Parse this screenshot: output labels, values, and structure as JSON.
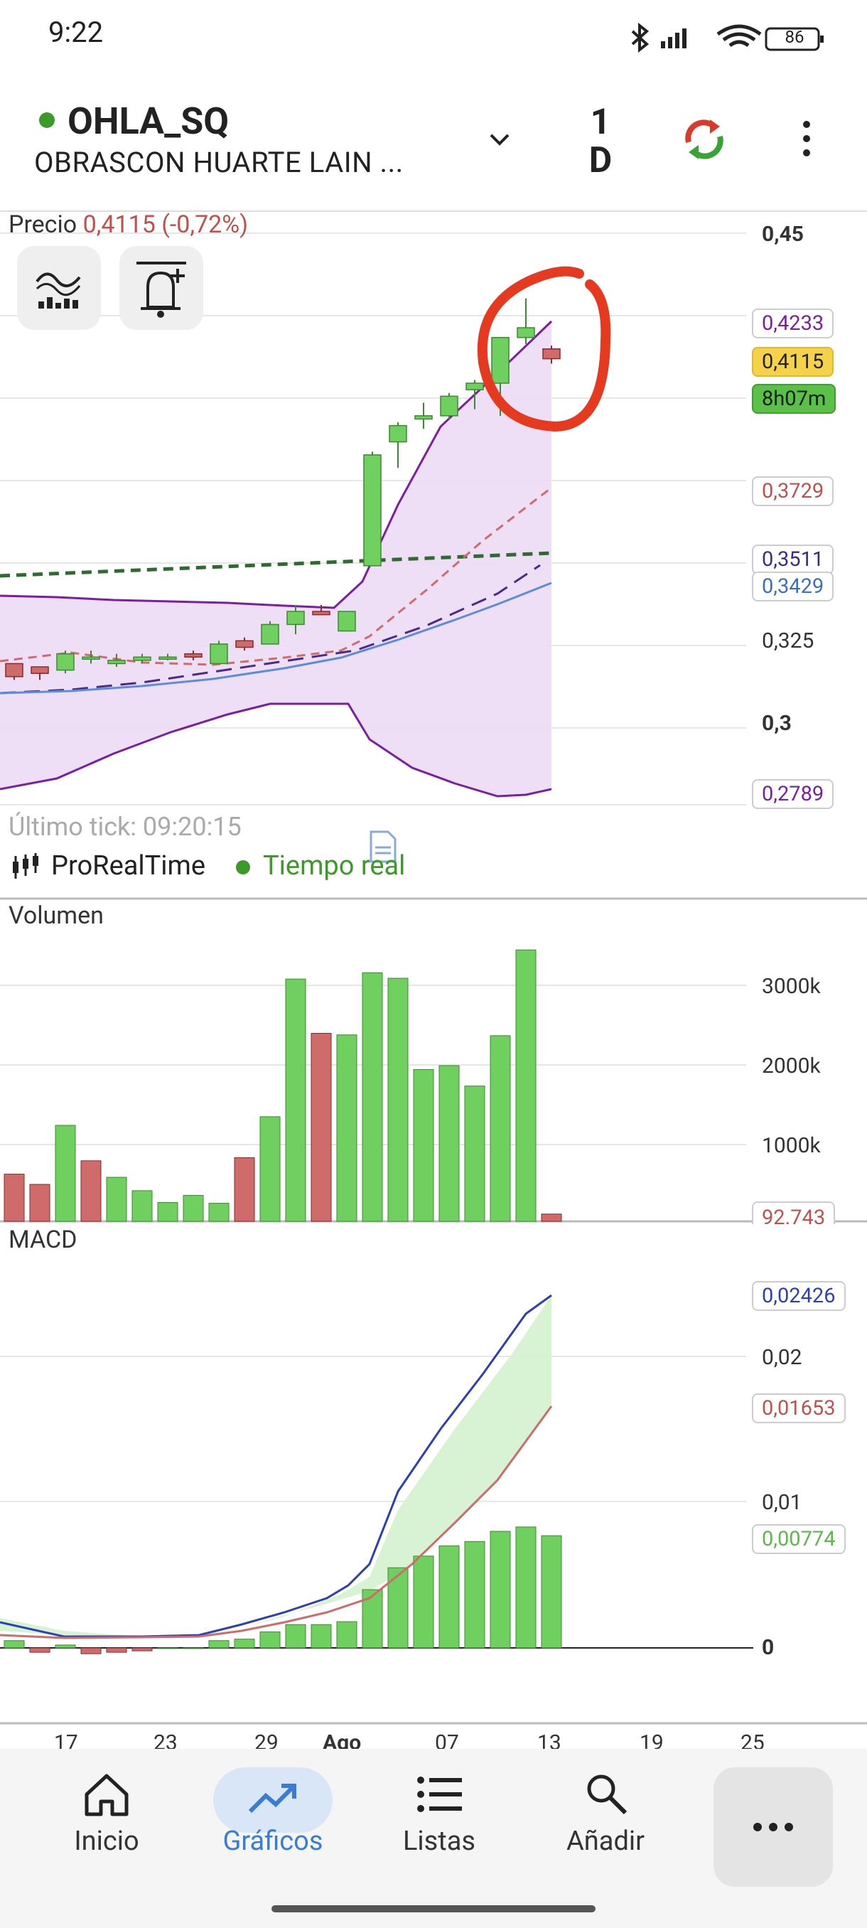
{
  "status": {
    "time": "9:22",
    "battery": "86"
  },
  "header": {
    "ticker": "OHLA_SQ",
    "company": "OBRASCON HUARTE LAIN ...",
    "period_top": "1",
    "period_bottom": "D"
  },
  "price_panel": {
    "label": "Precio",
    "value": "0,4115 (-0,72%)",
    "tags": {
      "upper_band": "0,4233",
      "last": "0,4115",
      "countdown": "8h07m",
      "ma_red": "0,3729",
      "dashed": "0,3511",
      "ma_blue": "0,3429",
      "lower_band": "0,2789"
    },
    "axis": [
      "0,45",
      "0,325",
      "0,3"
    ],
    "last_tick": "Último tick: 09:20:15",
    "provider": "ProRealTime",
    "realtime": "Tiempo real"
  },
  "volume_panel": {
    "label": "Volumen",
    "axis": [
      "3000k",
      "2000k",
      "1000k"
    ],
    "last_tag": "92.743"
  },
  "macd_panel": {
    "label": "MACD",
    "axis": [
      "0,02",
      "0,01",
      "0"
    ],
    "tags": {
      "macd": "0,02426",
      "signal": "0,01653",
      "hist": "0,00774"
    }
  },
  "xaxis": {
    "labels": [
      "17",
      "23",
      "29",
      "Ago",
      "07",
      "13",
      "19",
      "25"
    ]
  },
  "nav": {
    "items": [
      {
        "label": "Inicio"
      },
      {
        "label": "Gráficos"
      },
      {
        "label": "Listas"
      },
      {
        "label": "Añadir"
      }
    ]
  },
  "colors": {
    "up": "#6fcf5f",
    "down": "#d06b6b",
    "band": "#7b1fa2",
    "accent": "#3a7bd5",
    "annotation": "#e53a20"
  },
  "chart_data": {
    "type": "candlestick",
    "candles_ohlc": [
      [
        0.318,
        0.318,
        0.313,
        0.314
      ],
      [
        0.317,
        0.317,
        0.313,
        0.315
      ],
      [
        0.316,
        0.322,
        0.315,
        0.321
      ],
      [
        0.32,
        0.322,
        0.318,
        0.32
      ],
      [
        0.318,
        0.321,
        0.317,
        0.319
      ],
      [
        0.319,
        0.321,
        0.318,
        0.32
      ],
      [
        0.32,
        0.321,
        0.319,
        0.32
      ],
      [
        0.321,
        0.322,
        0.319,
        0.32
      ],
      [
        0.318,
        0.325,
        0.318,
        0.324
      ],
      [
        0.325,
        0.326,
        0.322,
        0.323
      ],
      [
        0.324,
        0.331,
        0.324,
        0.33
      ],
      [
        0.33,
        0.336,
        0.327,
        0.334
      ],
      [
        0.334,
        0.336,
        0.333,
        0.333
      ],
      [
        0.328,
        0.334,
        0.328,
        0.334
      ],
      [
        0.348,
        0.383,
        0.348,
        0.382
      ],
      [
        0.386,
        0.392,
        0.378,
        0.391
      ],
      [
        0.393,
        0.398,
        0.39,
        0.394
      ],
      [
        0.394,
        0.401,
        0.393,
        0.4
      ],
      [
        0.402,
        0.405,
        0.396,
        0.404
      ],
      [
        0.404,
        0.417,
        0.394,
        0.418
      ],
      [
        0.418,
        0.43,
        0.416,
        0.421
      ],
      [
        0.4145,
        0.4155,
        0.41,
        0.4115
      ]
    ],
    "volume_k": [
      600,
      470,
      1220,
      770,
      560,
      390,
      240,
      330,
      230,
      810,
      1330,
      3080,
      2390,
      2370,
      3160,
      3090,
      1930,
      1980,
      1720,
      2360,
      3450,
      92.743
    ],
    "volume_color": [
      "down",
      "down",
      "up",
      "down",
      "up",
      "up",
      "up",
      "up",
      "up",
      "down",
      "up",
      "up",
      "down",
      "up",
      "up",
      "up",
      "up",
      "up",
      "up",
      "up",
      "up",
      "down"
    ],
    "macd_hist": [
      0.0005,
      -0.0003,
      0.0002,
      -0.0004,
      -0.0003,
      -0.0002,
      0.0,
      0.0,
      0.0005,
      0.0006,
      0.0011,
      0.0016,
      0.0016,
      0.0018,
      0.004,
      0.0055,
      0.0063,
      0.007,
      0.0073,
      0.008,
      0.0083,
      0.0077
    ]
  }
}
